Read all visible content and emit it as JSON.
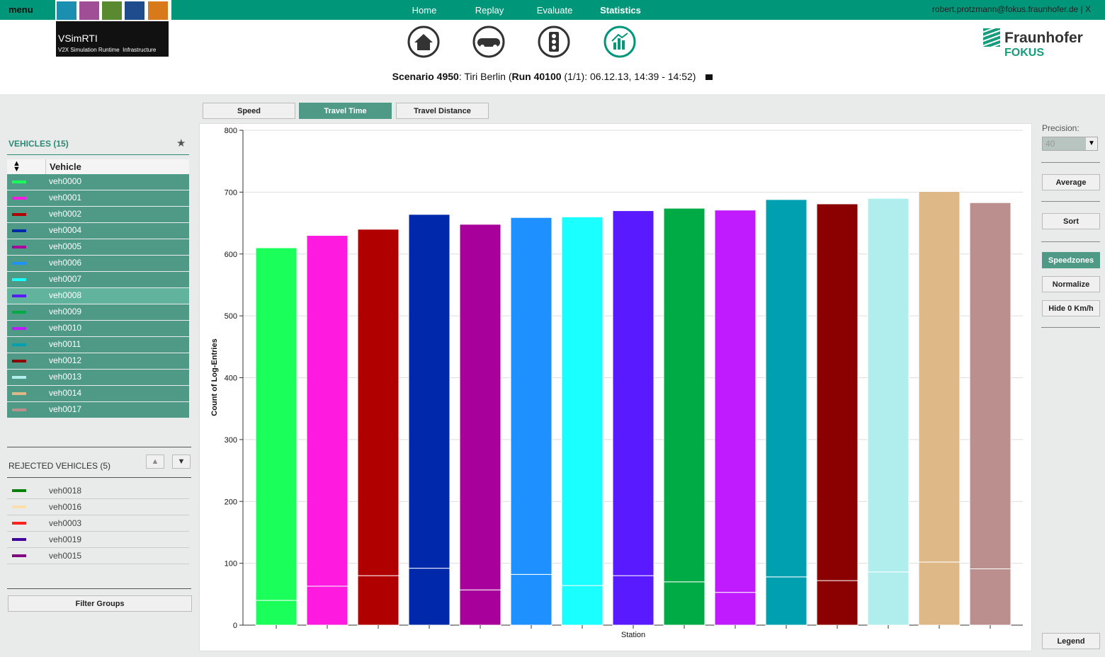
{
  "nav": {
    "menu": "menu",
    "logo_title": "VSimRTI",
    "logo_subtitle": "V2X Simulation Runtime  Infrastructure",
    "links": [
      "Home",
      "Replay",
      "Evaluate",
      "Statistics"
    ],
    "active": 3,
    "user_line": [
      "robert.protzmann@fokus.fraunhofer.de",
      "|",
      "X"
    ]
  },
  "brand": {
    "name": "Fraunhofer",
    "unit": "FOKUS"
  },
  "scenario": [
    "Scenario 4950",
    ": Tiri Berlin (",
    "Run 40100",
    " (1/1): 06.12.13, 14:39 - 14:52)"
  ],
  "tabs": {
    "items": [
      "Speed",
      "Travel Time",
      "Travel Distance"
    ],
    "active": 1
  },
  "vehicles": {
    "title": "VEHICLES (15)",
    "column": "Vehicle",
    "selected": 7,
    "rows": [
      {
        "name": "veh0000",
        "color": "#1aff5a"
      },
      {
        "name": "veh0001",
        "color": "#ff1adf"
      },
      {
        "name": "veh0002",
        "color": "#b00000"
      },
      {
        "name": "veh0004",
        "color": "#0028aa"
      },
      {
        "name": "veh0005",
        "color": "#a8009a"
      },
      {
        "name": "veh0006",
        "color": "#1e90ff"
      },
      {
        "name": "veh0007",
        "color": "#1affff"
      },
      {
        "name": "veh0008",
        "color": "#5a1aff"
      },
      {
        "name": "veh0009",
        "color": "#00aa44"
      },
      {
        "name": "veh0010",
        "color": "#c01aff"
      },
      {
        "name": "veh0011",
        "color": "#00a0b0"
      },
      {
        "name": "veh0012",
        "color": "#8b0000"
      },
      {
        "name": "veh0013",
        "color": "#b0eeee"
      },
      {
        "name": "veh0014",
        "color": "#deb887"
      },
      {
        "name": "veh0017",
        "color": "#bc8f8f"
      }
    ]
  },
  "rejected": {
    "title": "REJECTED VEHICLES (5)",
    "rows": [
      {
        "name": "veh0018",
        "color": "#008000"
      },
      {
        "name": "veh0016",
        "color": "#ffdead"
      },
      {
        "name": "veh0003",
        "color": "#ff2020"
      },
      {
        "name": "veh0019",
        "color": "#4000a0"
      },
      {
        "name": "veh0015",
        "color": "#800080"
      }
    ]
  },
  "filter_button": "Filter Groups",
  "controls": {
    "precision_label": "Precision:",
    "precision": "40",
    "buttons": [
      "Average",
      "Sort",
      "Speedzones",
      "Normalize",
      "Hide 0 Km/h"
    ],
    "active": 2,
    "legend": "Legend"
  },
  "chart_data": {
    "type": "stacked_bar",
    "x_label": "Station",
    "y_label": "Count of Log-Entries",
    "categories": [
      null,
      null,
      null,
      null,
      null,
      null,
      null,
      null,
      null,
      null,
      null,
      null,
      null,
      null,
      null
    ],
    "colors": [
      "#1aff5a",
      "#ff1adf",
      "#b00000",
      "#0028aa",
      "#a8009a",
      "#1e90ff",
      "#1affff",
      "#5a1aff",
      "#00aa44",
      "#c01aff",
      "#00a0b0",
      "#8b0000",
      "#b0eeee",
      "#deb887",
      "#bc8f8f"
    ],
    "series": [
      {
        "values": [
          40,
          63,
          80,
          92,
          57,
          82,
          64,
          80,
          70,
          53,
          78,
          72,
          86,
          102,
          91
        ]
      },
      {
        "values": [
          570,
          567,
          560,
          572,
          591,
          577,
          596,
          590,
          604,
          618,
          610,
          609,
          604,
          599,
          592
        ]
      }
    ],
    "ylim": [
      0,
      800
    ],
    "yticks": [
      0,
      100,
      200,
      300,
      400,
      500,
      600,
      700,
      800
    ],
    "grid": true
  }
}
